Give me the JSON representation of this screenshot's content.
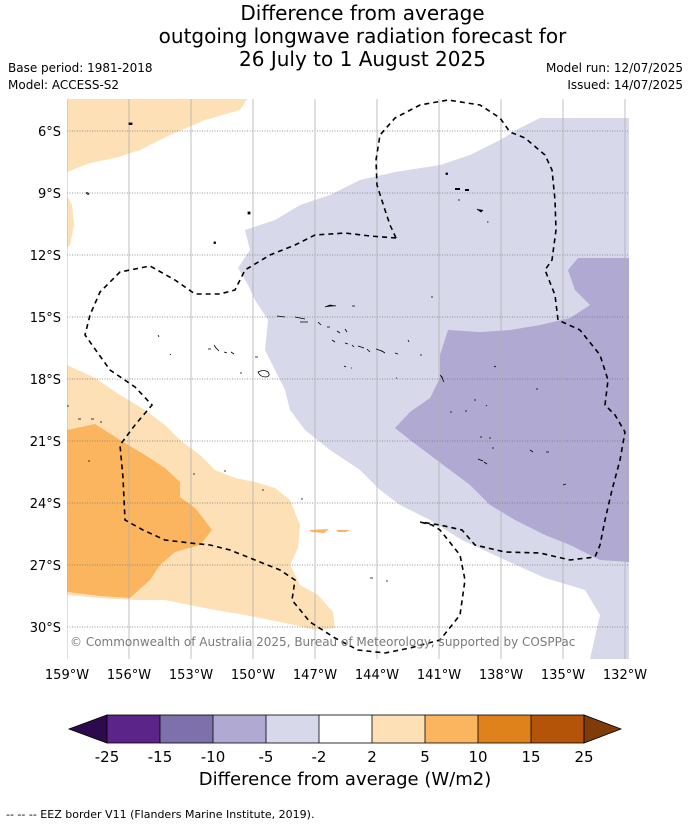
{
  "title": {
    "line1": "Difference from average",
    "line2": "outgoing longwave radiation forecast for",
    "line3": "26 July to 1 August 2025"
  },
  "meta": {
    "base_period": "Base period: 1981-2018",
    "model": "Model: ACCESS-S2",
    "model_run": "Model run: 12/07/2025",
    "issued": "Issued: 14/07/2025"
  },
  "map": {
    "copyright": "© Commonwealth of Australia 2025, Bureau of Meteorology, supported by COSPPac",
    "lat_labels": [
      "6°S",
      "9°S",
      "12°S",
      "15°S",
      "18°S",
      "21°S",
      "24°S",
      "27°S",
      "30°S"
    ],
    "lon_labels": [
      "159°W",
      "156°W",
      "153°W",
      "150°W",
      "147°W",
      "144°W",
      "141°W",
      "138°W",
      "135°W",
      "132°W"
    ]
  },
  "colorbar": {
    "title": "Difference from average (W/m2)",
    "tick_labels": [
      "-25",
      "-15",
      "-10",
      "-5",
      "-2",
      "2",
      "5",
      "10",
      "15",
      "25"
    ],
    "colors": {
      "below_min": "#2d0a4d",
      "n25_n15": "#5a2489",
      "n15_n10": "#7e70ab",
      "n10_n5": "#b0aad3",
      "n5_n2": "#d8d8eb",
      "n2_2": "#ffffff",
      "p2_5": "#fde0b6",
      "p5_10": "#fbb55e",
      "p10_15": "#e0821b",
      "p15_25": "#b35408",
      "above_max": "#7f3b08"
    }
  },
  "footnote": "--  --  -- EEZ border V11 (Flanders Marine Institute, 2019)."
}
